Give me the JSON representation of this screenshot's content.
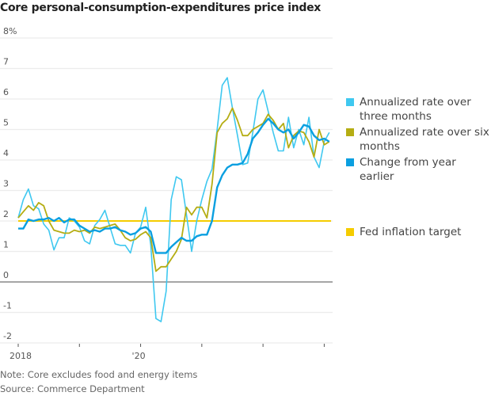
{
  "chart_data": {
    "type": "line",
    "title": "Core personal-consumption-expenditures price index",
    "ylim": [
      -2,
      8
    ],
    "yticks": [
      "8%",
      "7",
      "6",
      "5",
      "4",
      "3",
      "2",
      "1",
      "0",
      "-1",
      "-2"
    ],
    "ytick_values": [
      8,
      7,
      6,
      5,
      4,
      3,
      2,
      1,
      0,
      -1,
      -2
    ],
    "x_start": "2018-01",
    "x_frequency": "monthly",
    "xtick_labels": [
      {
        "label": "2018",
        "month_index": 0
      },
      {
        "label": "'20",
        "month_index": 24
      }
    ],
    "xtick_marks_month_index": [
      0,
      12,
      24,
      36,
      48,
      60
    ],
    "grid": true,
    "legend_position": "right",
    "series": [
      {
        "name": "Annualized rate over three months",
        "color": "#3fc8f0",
        "width": 1.6,
        "values": [
          2.1,
          2.7,
          3.05,
          2.5,
          2.4,
          1.9,
          1.7,
          1.05,
          1.45,
          1.45,
          2.1,
          2.0,
          1.8,
          1.35,
          1.25,
          1.85,
          2.05,
          2.35,
          1.8,
          1.25,
          1.2,
          1.2,
          0.95,
          1.6,
          1.8,
          2.45,
          1.2,
          -1.2,
          -1.3,
          -0.3,
          2.7,
          3.45,
          3.35,
          2.2,
          1.0,
          2.0,
          2.7,
          3.3,
          3.7,
          5.0,
          6.45,
          6.7,
          5.7,
          4.8,
          3.85,
          3.9,
          4.9,
          6.0,
          6.3,
          5.6,
          4.9,
          4.3,
          4.3,
          5.4,
          4.4,
          5.0,
          4.5,
          5.4,
          4.1,
          3.75,
          4.6,
          4.9
        ]
      },
      {
        "name": "Annualized rate over six months",
        "color": "#b5ad13",
        "width": 1.8,
        "values": [
          2.1,
          2.3,
          2.5,
          2.35,
          2.6,
          2.5,
          2.0,
          1.7,
          1.65,
          1.6,
          1.6,
          1.7,
          1.65,
          1.7,
          1.6,
          1.8,
          1.75,
          1.8,
          1.85,
          1.9,
          1.7,
          1.45,
          1.35,
          1.4,
          1.55,
          1.65,
          1.45,
          0.35,
          0.5,
          0.5,
          0.75,
          1.0,
          1.4,
          2.45,
          2.2,
          2.45,
          2.45,
          2.1,
          3.2,
          4.9,
          5.2,
          5.35,
          5.7,
          5.3,
          4.8,
          4.8,
          5.0,
          5.1,
          5.2,
          5.5,
          5.3,
          5.0,
          5.2,
          4.4,
          4.8,
          4.95,
          4.9,
          4.6,
          4.1,
          5.0,
          4.5,
          4.6
        ]
      },
      {
        "name": "Change from year earlier",
        "color": "#0a9fe0",
        "width": 2.4,
        "values": [
          1.75,
          1.75,
          2.05,
          2.0,
          2.05,
          2.05,
          2.1,
          2.0,
          2.1,
          1.95,
          2.05,
          2.05,
          1.85,
          1.75,
          1.65,
          1.7,
          1.65,
          1.75,
          1.75,
          1.8,
          1.7,
          1.65,
          1.55,
          1.6,
          1.75,
          1.8,
          1.65,
          0.95,
          0.95,
          0.95,
          1.15,
          1.3,
          1.45,
          1.35,
          1.35,
          1.5,
          1.55,
          1.55,
          2.0,
          3.1,
          3.5,
          3.75,
          3.85,
          3.85,
          3.9,
          4.2,
          4.7,
          4.9,
          5.15,
          5.35,
          5.2,
          5.0,
          4.9,
          5.0,
          4.7,
          4.9,
          5.15,
          5.1,
          4.8,
          4.65,
          4.7,
          4.6
        ]
      }
    ],
    "reference_line": {
      "name": "Fed inflation target",
      "value": 2,
      "color": "#f5cc00"
    }
  },
  "notes": {
    "note": "Note: Core excludes food and energy items",
    "source": "Source: Commerce Department"
  }
}
